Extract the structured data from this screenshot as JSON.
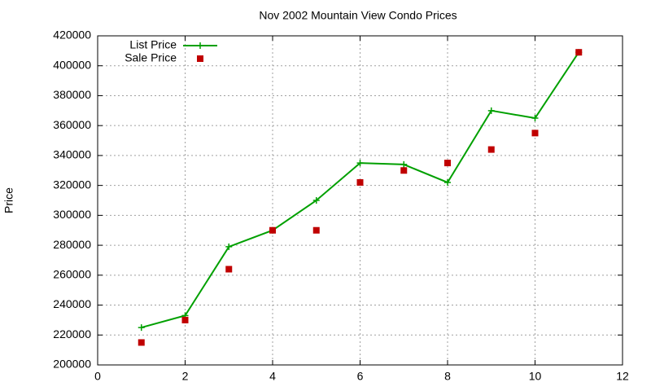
{
  "chart_data": {
    "type": "line",
    "title": "Nov 2002 Mountain View Condo Prices",
    "y_label": "Price",
    "x": [
      1,
      2,
      3,
      4,
      5,
      6,
      7,
      8,
      9,
      10,
      11
    ],
    "series": [
      {
        "name": "List Price",
        "color": "#00a000",
        "line": true,
        "marker": "plus",
        "values": [
          225000,
          233000,
          279000,
          290000,
          310000,
          335000,
          334000,
          322000,
          370000,
          365000,
          409000
        ]
      },
      {
        "name": "Sale Price",
        "color": "#c00000",
        "line": false,
        "marker": "square",
        "values": [
          215000,
          230000,
          264000,
          290000,
          290000,
          322000,
          330000,
          335000,
          344000,
          355000,
          409000
        ]
      }
    ],
    "xlim": [
      0,
      12
    ],
    "xticks": [
      0,
      2,
      4,
      6,
      8,
      10,
      12
    ],
    "ylim": [
      200000,
      420000
    ],
    "yticks": [
      200000,
      220000,
      240000,
      260000,
      280000,
      300000,
      320000,
      340000,
      360000,
      380000,
      400000,
      420000
    ],
    "grid": true,
    "legend": "top-left"
  }
}
